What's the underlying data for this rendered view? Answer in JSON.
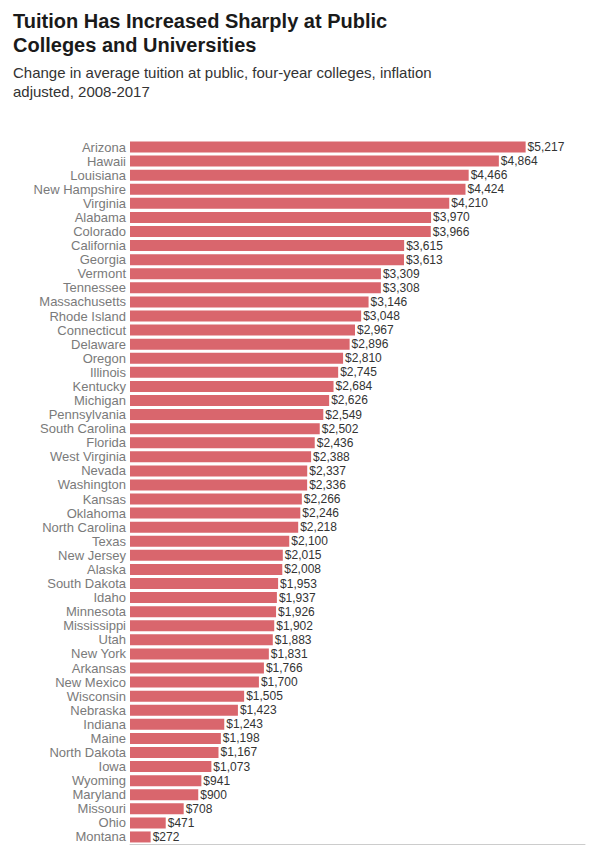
{
  "chart_data": {
    "type": "bar",
    "title": "Tuition Has Increased Sharply at Public Colleges and Universities",
    "subtitle": "Change in average tuition at public, four-year colleges, inflation adjusted, 2008-2017",
    "orientation": "horizontal",
    "color": "#d9666d",
    "data_labels": true,
    "tick_labels": "y",
    "grid": false,
    "xlim": [
      0,
      6000
    ],
    "categories": [
      "Arizona",
      "Hawaii",
      "Louisiana",
      "New Hampshire",
      "Virginia",
      "Alabama",
      "Colorado",
      "California",
      "Georgia",
      "Vermont",
      "Tennessee",
      "Massachusetts",
      "Rhode Island",
      "Connecticut",
      "Delaware",
      "Oregon",
      "Illinois",
      "Kentucky",
      "Michigan",
      "Pennsylvania",
      "South Carolina",
      "Florida",
      "West Virginia",
      "Nevada",
      "Washington",
      "Kansas",
      "Oklahoma",
      "North Carolina",
      "Texas",
      "New Jersey",
      "Alaska",
      "South Dakota",
      "Idaho",
      "Minnesota",
      "Mississippi",
      "Utah",
      "New York",
      "Arkansas",
      "New Mexico",
      "Wisconsin",
      "Nebraska",
      "Indiana",
      "Maine",
      "North Dakota",
      "Iowa",
      "Wyoming",
      "Maryland",
      "Missouri",
      "Ohio",
      "Montana"
    ],
    "values": [
      5217,
      4864,
      4466,
      4424,
      4210,
      3970,
      3966,
      3615,
      3613,
      3309,
      3308,
      3146,
      3048,
      2967,
      2896,
      2810,
      2745,
      2684,
      2626,
      2549,
      2502,
      2436,
      2388,
      2337,
      2336,
      2266,
      2246,
      2218,
      2100,
      2015,
      2008,
      1953,
      1937,
      1926,
      1902,
      1883,
      1831,
      1766,
      1700,
      1505,
      1423,
      1243,
      1198,
      1167,
      1073,
      941,
      900,
      708,
      471,
      272
    ],
    "value_labels": [
      "$5,217",
      "$4,864",
      "$4,466",
      "$4,424",
      "$4,210",
      "$3,970",
      "$3,966",
      "$3,615",
      "$3,613",
      "$3,309",
      "$3,308",
      "$3,146",
      "$3,048",
      "$2,967",
      "$2,896",
      "$2,810",
      "$2,745",
      "$2,684",
      "$2,626",
      "$2,549",
      "$2,502",
      "$2,436",
      "$2,388",
      "$2,337",
      "$2,336",
      "$2,266",
      "$2,246",
      "$2,218",
      "$2,100",
      "$2,015",
      "$2,008",
      "$1,953",
      "$1,937",
      "$1,926",
      "$1,902",
      "$1,883",
      "$1,831",
      "$1,766",
      "$1,700",
      "$1,505",
      "$1,423",
      "$1,243",
      "$1,198",
      "$1,167",
      "$1,073",
      "$941",
      "$900",
      "$708",
      "$471",
      "$272"
    ]
  }
}
